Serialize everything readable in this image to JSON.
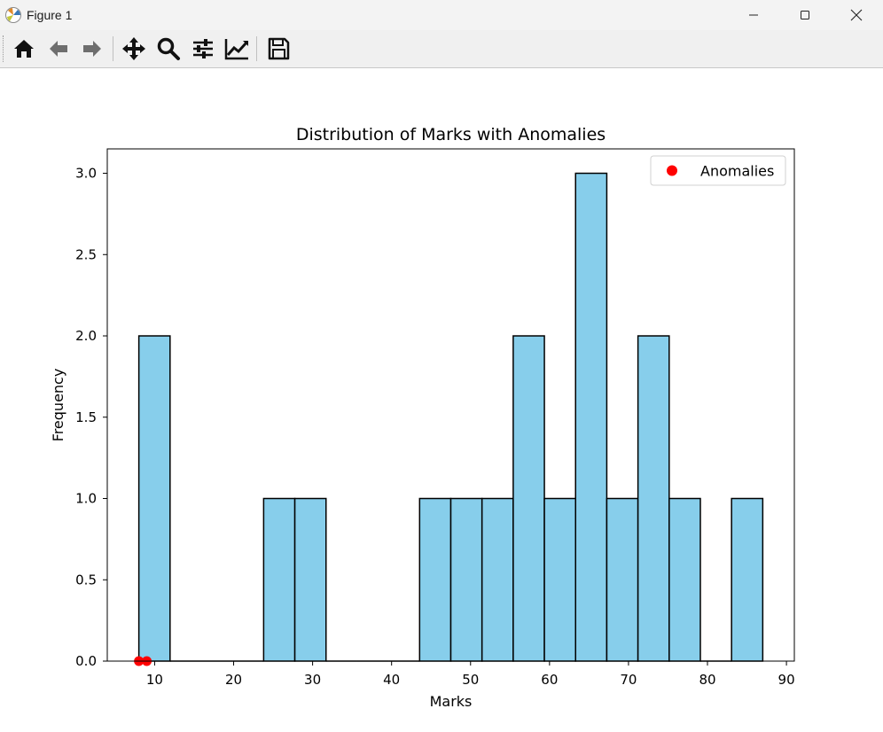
{
  "window": {
    "title": "Figure 1",
    "controls": [
      "minimize",
      "maximize",
      "close"
    ]
  },
  "toolbar": {
    "buttons": [
      {
        "name": "home-icon",
        "label": "Home"
      },
      {
        "name": "back-icon",
        "label": "Back"
      },
      {
        "name": "forward-icon",
        "label": "Forward"
      },
      {
        "name": "pan-icon",
        "label": "Pan"
      },
      {
        "name": "zoom-icon",
        "label": "Zoom"
      },
      {
        "name": "configure-subplots-icon",
        "label": "Configure subplots"
      },
      {
        "name": "edit-axis-icon",
        "label": "Edit axis"
      },
      {
        "name": "save-icon",
        "label": "Save"
      }
    ]
  },
  "chart_data": {
    "type": "bar",
    "title": "Distribution of Marks with Anomalies",
    "xlabel": "Marks",
    "ylabel": "Frequency",
    "xlim": [
      4,
      91
    ],
    "ylim": [
      0,
      3.15
    ],
    "xticks": [
      10,
      20,
      30,
      40,
      50,
      60,
      70,
      80,
      90
    ],
    "yticks": [
      0.0,
      0.5,
      1.0,
      1.5,
      2.0,
      2.5,
      3.0
    ],
    "grid": false,
    "bin_edges": [
      8,
      11.95,
      15.9,
      19.85,
      23.8,
      27.75,
      31.7,
      35.65,
      39.6,
      43.55,
      47.5,
      51.45,
      55.4,
      59.35,
      63.3,
      67.25,
      71.2,
      75.15,
      79.1,
      83.05,
      87
    ],
    "counts": [
      2,
      0,
      0,
      0,
      1,
      1,
      0,
      0,
      0,
      1,
      1,
      1,
      2,
      1,
      3,
      1,
      2,
      1,
      0,
      1
    ],
    "bar_color": "#87CEEB",
    "edge_color": "#000000",
    "series": [
      {
        "name": "Anomalies",
        "type": "scatter",
        "color": "#ff0000",
        "x": [
          8,
          9
        ],
        "y": [
          0,
          0
        ]
      }
    ],
    "legend": {
      "placement": "top-right",
      "entries": [
        "Anomalies"
      ]
    }
  }
}
